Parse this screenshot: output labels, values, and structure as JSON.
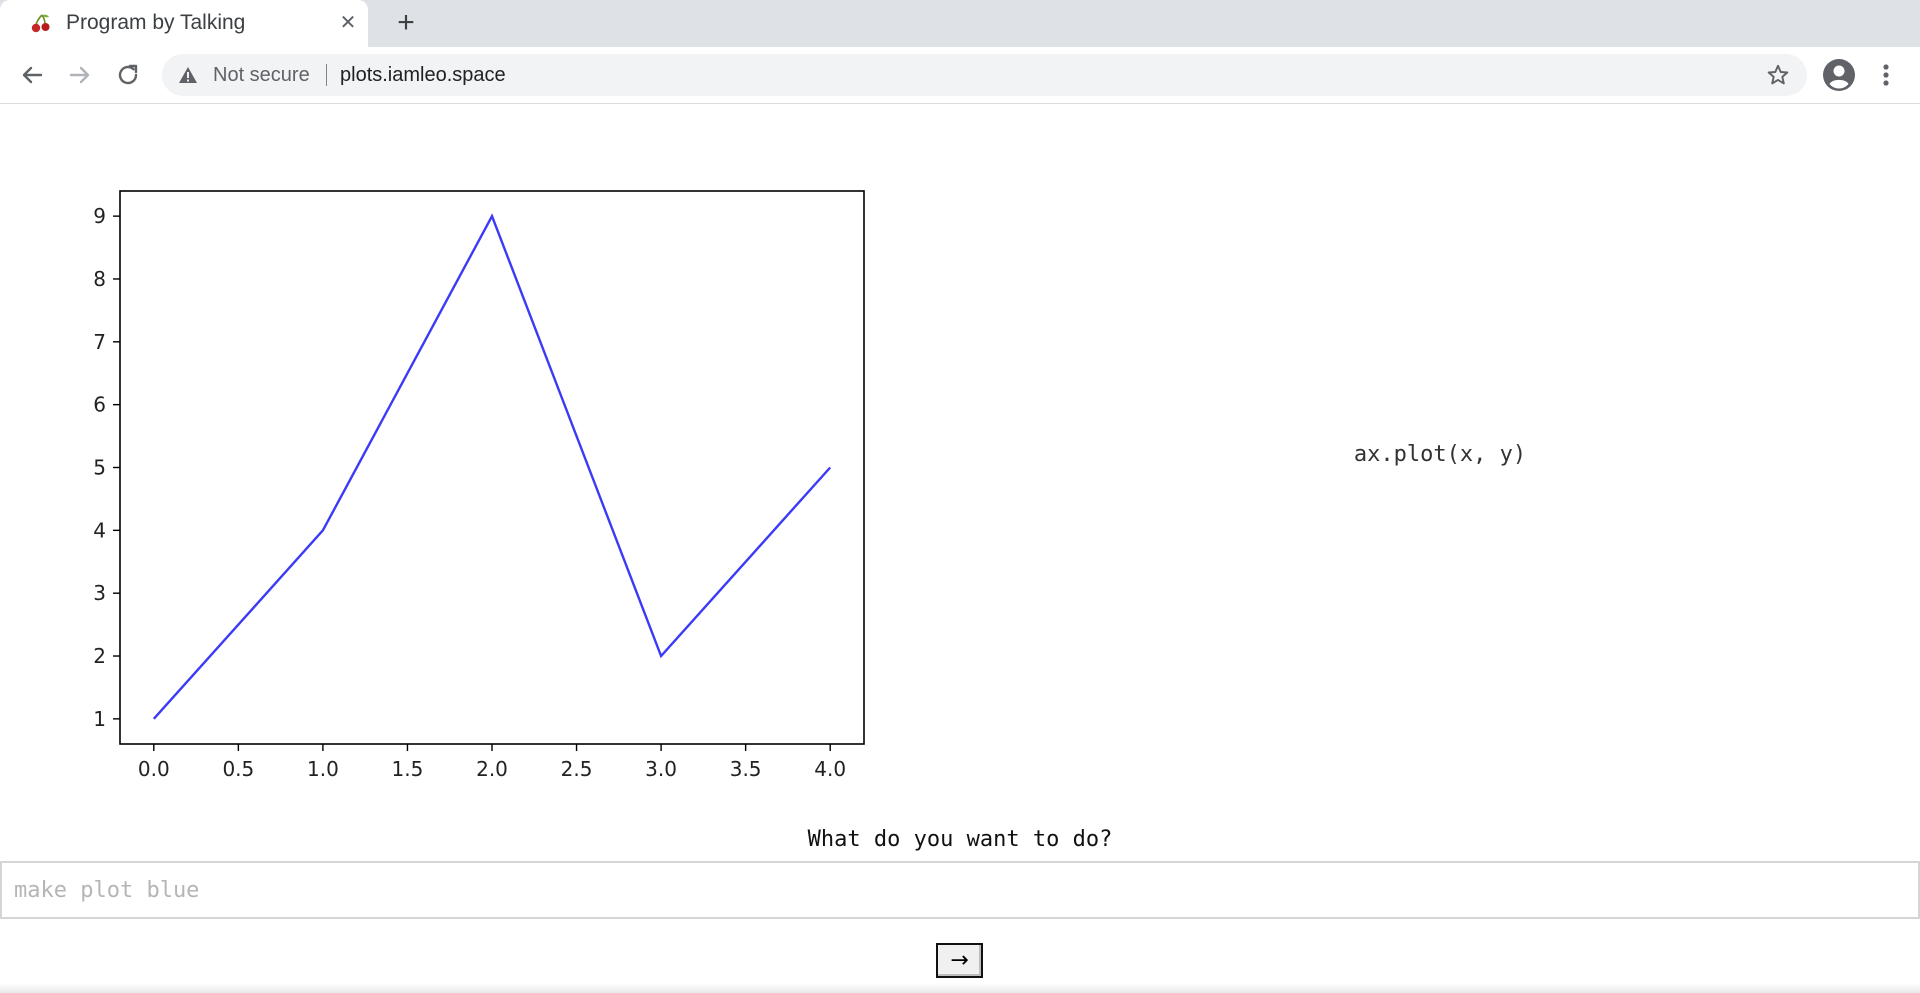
{
  "browser": {
    "tab": {
      "title": "Program by Talking",
      "favicon": "cherry-icon",
      "close_icon": "close-icon"
    },
    "new_tab_icon": "plus-icon",
    "nav": {
      "back_icon": "arrow-left-icon",
      "forward_icon": "arrow-right-icon",
      "reload_icon": "reload-icon"
    },
    "omnibox": {
      "security_icon": "warning-icon",
      "security_label": "Not secure",
      "url": "plots.iamleo.space"
    },
    "bookmark_icon": "star-icon",
    "profile_icon": "avatar-icon",
    "menu_icon": "kebab-menu-icon"
  },
  "page": {
    "code": "ax.plot(x, y)",
    "prompt_label": "What do you want to do?",
    "prompt_placeholder": "make plot blue",
    "submit_label": "→"
  },
  "chart_data": {
    "type": "line",
    "x": [
      0,
      1,
      2,
      3,
      4
    ],
    "series": [
      {
        "values": [
          1,
          4,
          9,
          2,
          5
        ],
        "color": "#3b3bf7"
      }
    ],
    "xlim": [
      -0.2,
      4.2
    ],
    "ylim": [
      0.6,
      9.4
    ],
    "xticks": [
      "0.0",
      "0.5",
      "1.0",
      "1.5",
      "2.0",
      "2.5",
      "3.0",
      "3.5",
      "4.0"
    ],
    "xtick_values": [
      0,
      0.5,
      1,
      1.5,
      2,
      2.5,
      3,
      3.5,
      4
    ],
    "yticks": [
      "1",
      "2",
      "3",
      "4",
      "5",
      "6",
      "7",
      "8",
      "9"
    ],
    "ytick_values": [
      1,
      2,
      3,
      4,
      5,
      6,
      7,
      8,
      9
    ],
    "grid": false,
    "legend": false
  }
}
